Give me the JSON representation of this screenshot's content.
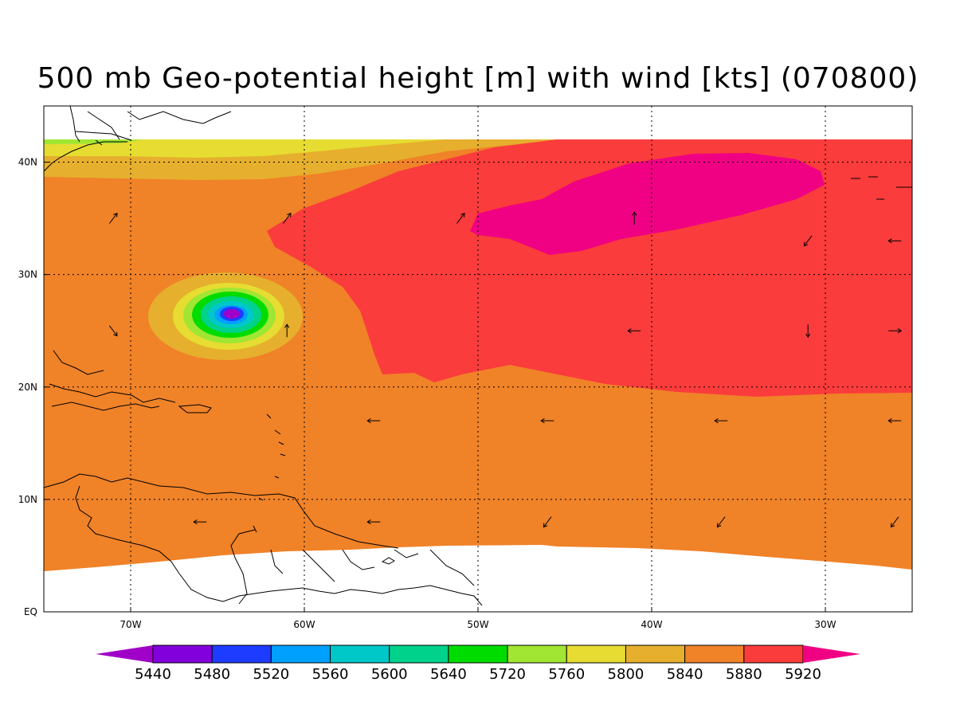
{
  "title": "500 mb Geo-potential height [m] with wind [kts] (070800)",
  "map": {
    "lon_range": [
      -75,
      -25
    ],
    "lat_range": [
      0,
      45
    ],
    "data_lat_max": 42,
    "longitude_ticks": [
      {
        "lon": -70,
        "label": "70W"
      },
      {
        "lon": -60,
        "label": "60W"
      },
      {
        "lon": -50,
        "label": "50W"
      },
      {
        "lon": -40,
        "label": "40W"
      },
      {
        "lon": -30,
        "label": "30W"
      }
    ],
    "latitude_ticks": [
      {
        "lat": 40,
        "label": "40N"
      },
      {
        "lat": 30,
        "label": "30N"
      },
      {
        "lat": 20,
        "label": "20N"
      },
      {
        "lat": 10,
        "label": "10N"
      },
      {
        "lat": 0,
        "label": "EQ"
      }
    ],
    "grid": true,
    "features": {
      "low_center": {
        "lon": -64,
        "lat": 26.5,
        "value_m": 5440
      },
      "high_center": {
        "lon": -40,
        "lat": 37,
        "value_m": 5920
      }
    }
  },
  "colorbar": {
    "colors": [
      "#a000c8",
      "#8200dc",
      "#1e3cff",
      "#00a0ff",
      "#00c8c8",
      "#00d28c",
      "#00dc00",
      "#a0e632",
      "#e6dc32",
      "#e6af2d",
      "#f08228",
      "#fa3c3c",
      "#f00082"
    ],
    "labels": [
      "5440",
      "5480",
      "5520",
      "5560",
      "5600",
      "5640",
      "5720",
      "5760",
      "5800",
      "5840",
      "5880",
      "5920"
    ]
  },
  "wind_vectors": [
    {
      "lon": -71,
      "lat": 35,
      "dir": "NE"
    },
    {
      "lon": -61,
      "lat": 35,
      "dir": "NE"
    },
    {
      "lon": -51,
      "lat": 35,
      "dir": "NE"
    },
    {
      "lon": -41,
      "lat": 35,
      "dir": "N"
    },
    {
      "lon": -31,
      "lat": 33,
      "dir": "SW"
    },
    {
      "lon": -26,
      "lat": 33,
      "dir": "W"
    },
    {
      "lon": -71,
      "lat": 25,
      "dir": "SE"
    },
    {
      "lon": -61,
      "lat": 25,
      "dir": "N"
    },
    {
      "lon": -41,
      "lat": 25,
      "dir": "W"
    },
    {
      "lon": -31,
      "lat": 25,
      "dir": "S"
    },
    {
      "lon": -26,
      "lat": 25,
      "dir": "E"
    },
    {
      "lon": -56,
      "lat": 17,
      "dir": "W"
    },
    {
      "lon": -46,
      "lat": 17,
      "dir": "W"
    },
    {
      "lon": -36,
      "lat": 17,
      "dir": "W"
    },
    {
      "lon": -26,
      "lat": 17,
      "dir": "W"
    },
    {
      "lon": -66,
      "lat": 8,
      "dir": "W"
    },
    {
      "lon": -56,
      "lat": 8,
      "dir": "W"
    },
    {
      "lon": -46,
      "lat": 8,
      "dir": "SW"
    },
    {
      "lon": -36,
      "lat": 8,
      "dir": "SW"
    },
    {
      "lon": -26,
      "lat": 8,
      "dir": "SW"
    }
  ]
}
